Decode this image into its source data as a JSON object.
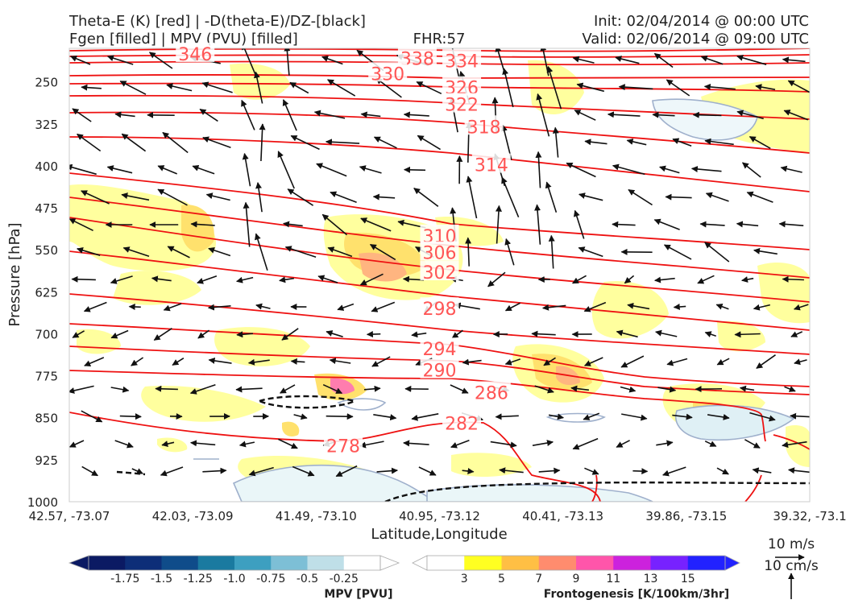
{
  "header": {
    "title_line1": "Theta-E (K) [red] | -D(theta-E)/DZ-[black]",
    "title_line2": "Fgen [filled] | MPV (PVU) [filled]",
    "fhr": "FHR:57",
    "init": "Init: 02/04/2014 @ 00:00 UTC",
    "valid": "Valid: 02/06/2014 @ 09:00 UTC"
  },
  "chart_data": {
    "type": "cross-section",
    "xlabel": "Latitude,Longitude",
    "ylabel": "Pressure [hPa]",
    "x_ticks": [
      "42.57, -73.07",
      "42.03, -73.09",
      "41.49, -73.10",
      "40.95, -73.12",
      "40.41, -73.13",
      "39.86, -73.15",
      "39.32, -73.1"
    ],
    "y_ticks": [
      250,
      325,
      400,
      475,
      550,
      625,
      700,
      775,
      850,
      925,
      1000
    ],
    "ylim": [
      190,
      1000
    ],
    "grid": false,
    "theta_e_labels": [
      {
        "value": "346",
        "x": 0.17,
        "p": 200
      },
      {
        "value": "338",
        "x": 0.47,
        "p": 208
      },
      {
        "value": "334",
        "x": 0.53,
        "p": 212
      },
      {
        "value": "330",
        "x": 0.43,
        "p": 235
      },
      {
        "value": "326",
        "x": 0.53,
        "p": 260
      },
      {
        "value": "322",
        "x": 0.53,
        "p": 290
      },
      {
        "value": "318",
        "x": 0.56,
        "p": 330
      },
      {
        "value": "314",
        "x": 0.57,
        "p": 398
      },
      {
        "value": "310",
        "x": 0.5,
        "p": 525
      },
      {
        "value": "306",
        "x": 0.5,
        "p": 555
      },
      {
        "value": "302",
        "x": 0.5,
        "p": 590
      },
      {
        "value": "298",
        "x": 0.5,
        "p": 655
      },
      {
        "value": "294",
        "x": 0.5,
        "p": 727
      },
      {
        "value": "290",
        "x": 0.5,
        "p": 765
      },
      {
        "value": "286",
        "x": 0.57,
        "p": 805
      },
      {
        "value": "282",
        "x": 0.53,
        "p": 860
      },
      {
        "value": "278",
        "x": 0.37,
        "p": 900
      }
    ],
    "mpv_colorbar": {
      "label": "MPV [PVU]",
      "ticks": [
        "-1.75",
        "-1.5",
        "-1.25",
        "-1.0",
        "-0.75",
        "-0.5",
        "-0.25"
      ],
      "colors": [
        "#0b1a63",
        "#0d2e78",
        "#0f4c8a",
        "#1a7aa0",
        "#3d9fc0",
        "#7dbfd6",
        "#bfdfe8",
        "#ffffff"
      ]
    },
    "fgen_colorbar": {
      "label": "Frontogenesis [K/100km/3hr]",
      "ticks": [
        "3",
        "5",
        "7",
        "9",
        "11",
        "13",
        "15"
      ],
      "colors": [
        "#ffffff",
        "#ffff22",
        "#ffbf44",
        "#ff8c6e",
        "#ff55aa",
        "#cc22dd",
        "#7722ff",
        "#2222ff"
      ]
    },
    "vector_key": {
      "horizontal": "10 m/s",
      "vertical": "10 cm/s"
    }
  }
}
